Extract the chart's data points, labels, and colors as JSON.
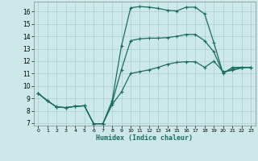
{
  "xlabel": "Humidex (Indice chaleur)",
  "background_color": "#cce8e8",
  "grid_color": "#aacfcf",
  "line_color": "#1a6e60",
  "xlim": [
    -0.5,
    23.5
  ],
  "ylim": [
    6.8,
    16.8
  ],
  "xtick_vals": [
    0,
    1,
    2,
    3,
    4,
    5,
    6,
    7,
    8,
    9,
    10,
    11,
    12,
    13,
    14,
    15,
    16,
    17,
    18,
    19,
    20,
    21,
    22,
    23
  ],
  "ytick_vals": [
    7,
    8,
    9,
    10,
    11,
    12,
    13,
    14,
    15,
    16
  ],
  "line1_x": [
    0,
    1,
    2,
    3,
    4,
    5,
    6,
    7,
    8,
    9,
    10,
    11,
    12,
    13,
    14,
    15,
    16,
    17,
    18,
    19,
    20,
    21,
    22,
    23
  ],
  "line1_y": [
    9.4,
    8.8,
    8.3,
    8.25,
    8.35,
    8.4,
    6.95,
    6.95,
    8.5,
    9.5,
    11.0,
    11.15,
    11.3,
    11.5,
    11.75,
    11.9,
    11.95,
    11.95,
    11.5,
    12.0,
    11.15,
    11.25,
    11.45,
    11.5
  ],
  "line2_x": [
    0,
    1,
    2,
    3,
    4,
    5,
    6,
    7,
    8,
    9,
    10,
    11,
    12,
    13,
    14,
    15,
    16,
    17,
    18,
    19,
    20,
    21,
    22,
    23
  ],
  "line2_y": [
    9.4,
    8.8,
    8.3,
    8.25,
    8.35,
    8.4,
    6.95,
    6.95,
    8.8,
    13.2,
    16.3,
    16.4,
    16.35,
    16.25,
    16.1,
    16.05,
    16.35,
    16.35,
    15.8,
    13.5,
    11.0,
    11.5,
    11.5,
    11.5
  ],
  "line3_x": [
    0,
    1,
    2,
    3,
    4,
    5,
    6,
    7,
    8,
    9,
    10,
    11,
    12,
    13,
    14,
    15,
    16,
    17,
    18,
    19,
    20,
    21,
    22,
    23
  ],
  "line3_y": [
    9.4,
    8.8,
    8.3,
    8.25,
    8.35,
    8.4,
    6.95,
    6.95,
    8.65,
    11.3,
    13.65,
    13.8,
    13.85,
    13.85,
    13.9,
    14.0,
    14.15,
    14.15,
    13.65,
    12.75,
    11.05,
    11.35,
    11.5,
    11.5
  ]
}
